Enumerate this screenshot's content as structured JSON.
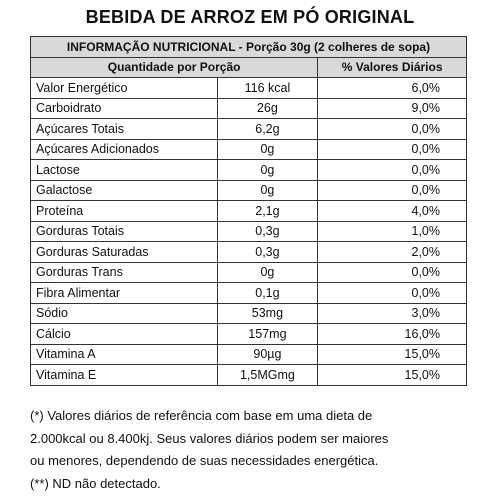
{
  "header": {
    "title": "BEBIDA DE ARROZ EM PÓ ORIGINAL"
  },
  "table": {
    "caption": "INFORMAÇÃO NUTRICIONAL - Porção 30g (2 colheres de sopa)",
    "columns": [
      "Quantidade por Porção",
      "% Valores Diários"
    ],
    "rows": [
      [
        "Valor Energético",
        "116 kcal",
        "6,0%"
      ],
      [
        "Carboidrato",
        "26g",
        "9,0%"
      ],
      [
        "Açúcares Totais",
        "6,2g",
        "0,0%"
      ],
      [
        "Açúcares Adicionados",
        "0g",
        "0,0%"
      ],
      [
        "Lactose",
        "0g",
        "0,0%"
      ],
      [
        "Galactose",
        "0g",
        "0,0%"
      ],
      [
        "Proteína",
        "2,1g",
        "4,0%"
      ],
      [
        "Gorduras Totais",
        "0,3g",
        "1,0%"
      ],
      [
        "Gorduras Saturadas",
        "0,3g",
        "2,0%"
      ],
      [
        "Gorduras Trans",
        "0g",
        "0,0%"
      ],
      [
        "Fibra Alimentar",
        "0,1g",
        "0,0%"
      ],
      [
        "Sódio",
        "53mg",
        "3,0%"
      ],
      [
        "Cálcio",
        "157mg",
        "16,0%"
      ],
      [
        "Vitamina A",
        "90µg",
        "15,0%"
      ],
      [
        "Vitamina E",
        "1,5MGmg",
        "15,0%"
      ]
    ]
  },
  "footnotes": [
    "(*) Valores diários de referência com base em uma dieta de",
    "2.000kcal ou 8.400kj. Seus valores diários podem ser maiores",
    "ou menores, dependendo de suas necessidades energética.",
    "(**) ND não detectado."
  ]
}
